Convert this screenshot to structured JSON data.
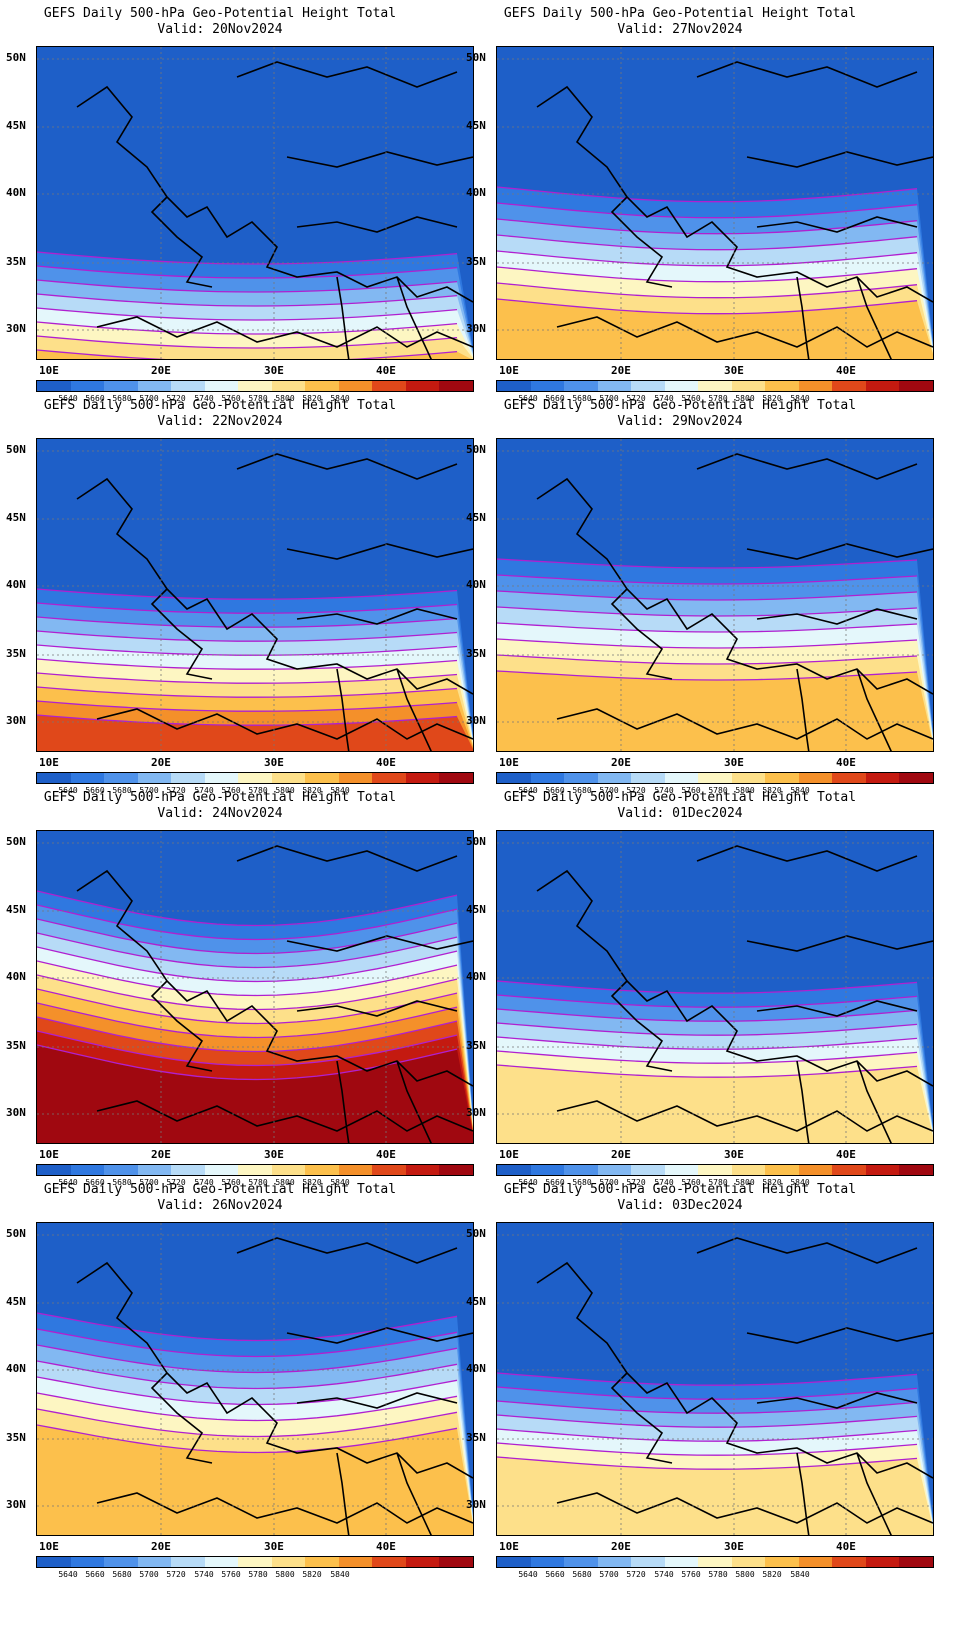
{
  "title_prefix": "GEFS Daily 500-hPa Geo-Potential Height Total",
  "panels": [
    {
      "title": "GEFS Daily 500-hPa Geo-Potential Height Total",
      "valid": "Valid:  20Nov2024"
    },
    {
      "title": "GEFS Daily 500-hPa Geo-Potential Height Total",
      "valid": "Valid:  27Nov2024"
    },
    {
      "title": "GEFS Daily 500-hPa Geo-Potential Height Total",
      "valid": "Valid:  22Nov2024"
    },
    {
      "title": "GEFS Daily 500-hPa Geo-Potential Height Total",
      "valid": "Valid:  29Nov2024"
    },
    {
      "title": "GEFS Daily 500-hPa Geo-Potential Height Total",
      "valid": "Valid:  24Nov2024"
    },
    {
      "title": "GEFS Daily 500-hPa Geo-Potential Height Total",
      "valid": "Valid:  01Dec2024"
    },
    {
      "title": "GEFS Daily 500-hPa Geo-Potential Height Total",
      "valid": "Valid:  26Nov2024"
    },
    {
      "title": "GEFS Daily 500-hPa Geo-Potential Height Total",
      "valid": "Valid:  03Dec2024"
    }
  ],
  "lat_labels": [
    "50N",
    "45N",
    "40N",
    "35N",
    "30N"
  ],
  "lon_labels": [
    "10E",
    "20E",
    "30E",
    "40E"
  ],
  "colorbar_labels": [
    "5640",
    "5660",
    "5680",
    "5700",
    "5720",
    "5740",
    "5760",
    "5780",
    "5800",
    "5820",
    "5840"
  ],
  "colorbar_colors": [
    "#1e5fc8",
    "#2f78e0",
    "#4f92ea",
    "#82b8f2",
    "#b7dbf7",
    "#e4f7fb",
    "#fdf6c2",
    "#fde08a",
    "#fcc04c",
    "#f4902a",
    "#e0481a",
    "#c41a10",
    "#a00810"
  ],
  "contour_color": "#b020d0"
}
